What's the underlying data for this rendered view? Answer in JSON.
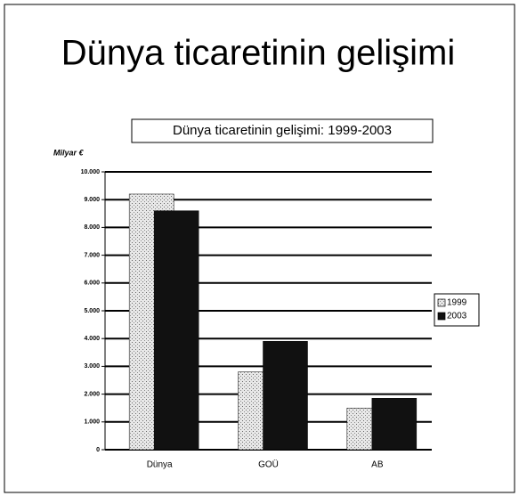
{
  "page_title": "Dünya ticaretinin gelişimi",
  "chart_data": {
    "type": "bar",
    "title": "Dünya ticaretinin gelişimi: 1999-2003",
    "y_axis_label": "Milyar €",
    "categories": [
      "Dünya",
      "GOÜ",
      "AB"
    ],
    "series": [
      {
        "name": "1999",
        "color": "#d4d4d4",
        "values": [
          9200,
          2800,
          1500
        ]
      },
      {
        "name": "2003",
        "color": "#111111",
        "values": [
          8600,
          3900,
          1850
        ]
      }
    ],
    "ylim": [
      0,
      10000
    ],
    "yticks": [
      0,
      {
        "value": 1000,
        "label": "1.000"
      },
      {
        "value": 2000,
        "label": "2.000"
      },
      {
        "value": 3000,
        "label": "3.000"
      },
      {
        "value": 4000,
        "label": "4.000"
      },
      {
        "value": 5000,
        "label": "5.000"
      },
      {
        "value": 6000,
        "label": "6.000"
      },
      {
        "value": 7000,
        "label": "7.000"
      },
      {
        "value": 8000,
        "label": "8.000"
      },
      {
        "value": 9000,
        "label": "9.000"
      },
      {
        "value": 10000,
        "label": "10.000"
      }
    ],
    "grid": true,
    "legend": "right"
  }
}
